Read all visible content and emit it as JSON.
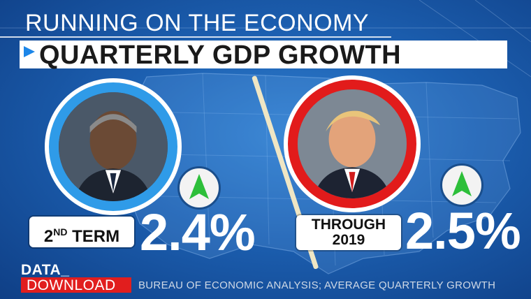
{
  "header": {
    "title": "RUNNING ON THE ECONOMY",
    "subtitle": "QUARTERLY GDP GROWTH"
  },
  "left": {
    "portrait_icon": "person-portrait-icon",
    "ring_color": "#2f9be8",
    "label_main": "2",
    "label_sup": "ND",
    "label_rest": " TERM",
    "value": "2.4%",
    "trend_icon": "up-arrow-icon"
  },
  "right": {
    "portrait_icon": "person-portrait-icon",
    "ring_color": "#e21b1b",
    "label_line1": "THROUGH",
    "label_line2": "2019",
    "value": "2.5%",
    "trend_icon": "up-arrow-icon"
  },
  "footer": {
    "brand_top": "DATA_",
    "brand_bottom": "DOWNLOAD",
    "source": "BUREAU OF ECONOMIC ANALYSIS; AVERAGE QUARTERLY GROWTH"
  },
  "colors": {
    "accent_blue": "#1c86e8",
    "arrow_green": "#2dbf3a",
    "brand_red": "#e11e1e"
  }
}
